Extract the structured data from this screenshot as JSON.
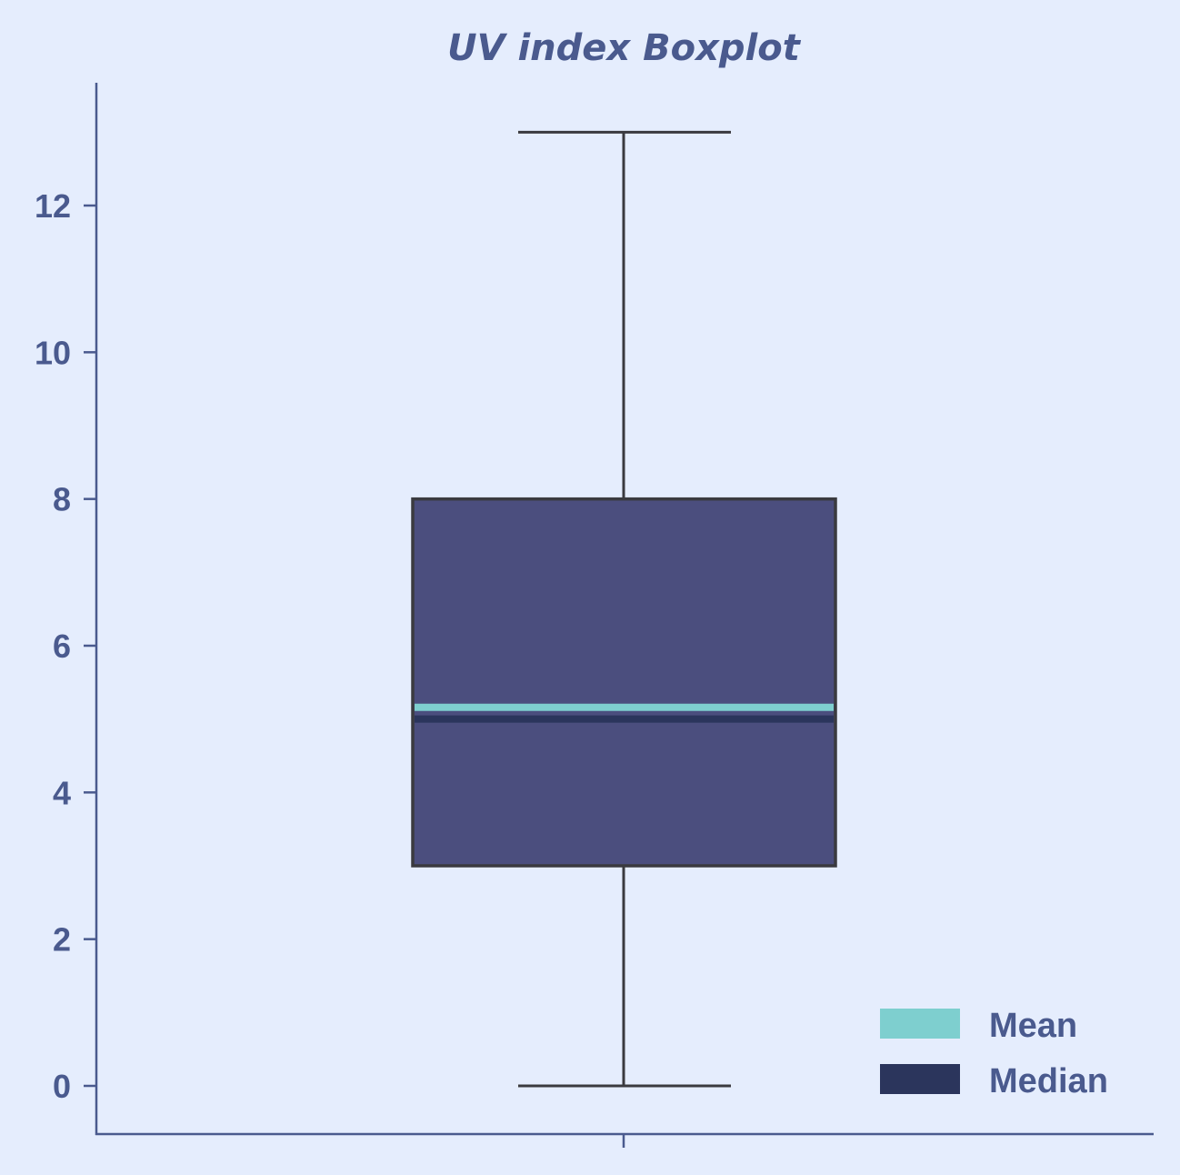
{
  "chart_data": {
    "type": "box",
    "title": "UV index Boxplot",
    "xlabel": "",
    "ylabel": "",
    "ylim": [
      -0.65,
      13.6
    ],
    "yticks": [
      0,
      2,
      4,
      6,
      8,
      10,
      12
    ],
    "grid": false,
    "legend_position": "bottom-right",
    "box": {
      "whisker_low": 0,
      "q1": 3,
      "median": 5,
      "mean": 5.16,
      "q3": 8,
      "whisker_high": 13
    },
    "legend": [
      {
        "label": "Mean",
        "color": "#7ecfcf"
      },
      {
        "label": "Median",
        "color": "#2b355c"
      }
    ],
    "colors": {
      "background": "#e5edfd",
      "axis": "#4a5a8e",
      "box_fill": "#4b4e7e",
      "box_edge": "#3a3a3f",
      "whisker": "#3a3a3f",
      "mean": "#7ecfcf",
      "median": "#2b355c"
    }
  }
}
